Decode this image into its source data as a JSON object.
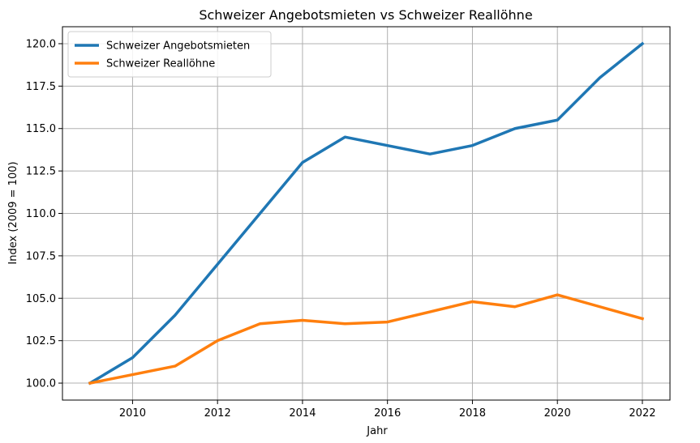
{
  "chart_data": {
    "type": "line",
    "title": "Schweizer Angebotsmieten vs Schweizer Reallöhne",
    "xlabel": "Jahr",
    "ylabel": "Index (2009 = 100)",
    "x": [
      2009,
      2010,
      2011,
      2012,
      2013,
      2014,
      2015,
      2016,
      2017,
      2018,
      2019,
      2020,
      2021,
      2022
    ],
    "xlim": [
      2008.35,
      2022.65
    ],
    "ylim": [
      99.0,
      121.0
    ],
    "xticks": [
      2010,
      2012,
      2014,
      2016,
      2018,
      2020,
      2022
    ],
    "xtick_labels": [
      "2010",
      "2012",
      "2014",
      "2016",
      "2018",
      "2020",
      "2022"
    ],
    "yticks": [
      100.0,
      102.5,
      105.0,
      107.5,
      110.0,
      112.5,
      115.0,
      117.5,
      120.0
    ],
    "ytick_labels": [
      "100.0",
      "102.5",
      "105.0",
      "107.5",
      "110.0",
      "112.5",
      "115.0",
      "117.5",
      "120.0"
    ],
    "grid": true,
    "legend_position": "top-left",
    "series": [
      {
        "name": "Schweizer Angebotsmieten",
        "color": "#1f77b4",
        "values": [
          100.0,
          101.5,
          104.0,
          107.0,
          110.0,
          113.0,
          114.5,
          114.0,
          113.5,
          114.0,
          115.0,
          115.5,
          118.0,
          120.0
        ]
      },
      {
        "name": "Schweizer Reallöhne",
        "color": "#ff7f0e",
        "values": [
          100.0,
          100.5,
          101.0,
          102.5,
          103.5,
          103.7,
          103.5,
          103.6,
          104.2,
          104.8,
          104.5,
          105.2,
          104.5,
          103.8
        ]
      }
    ]
  }
}
